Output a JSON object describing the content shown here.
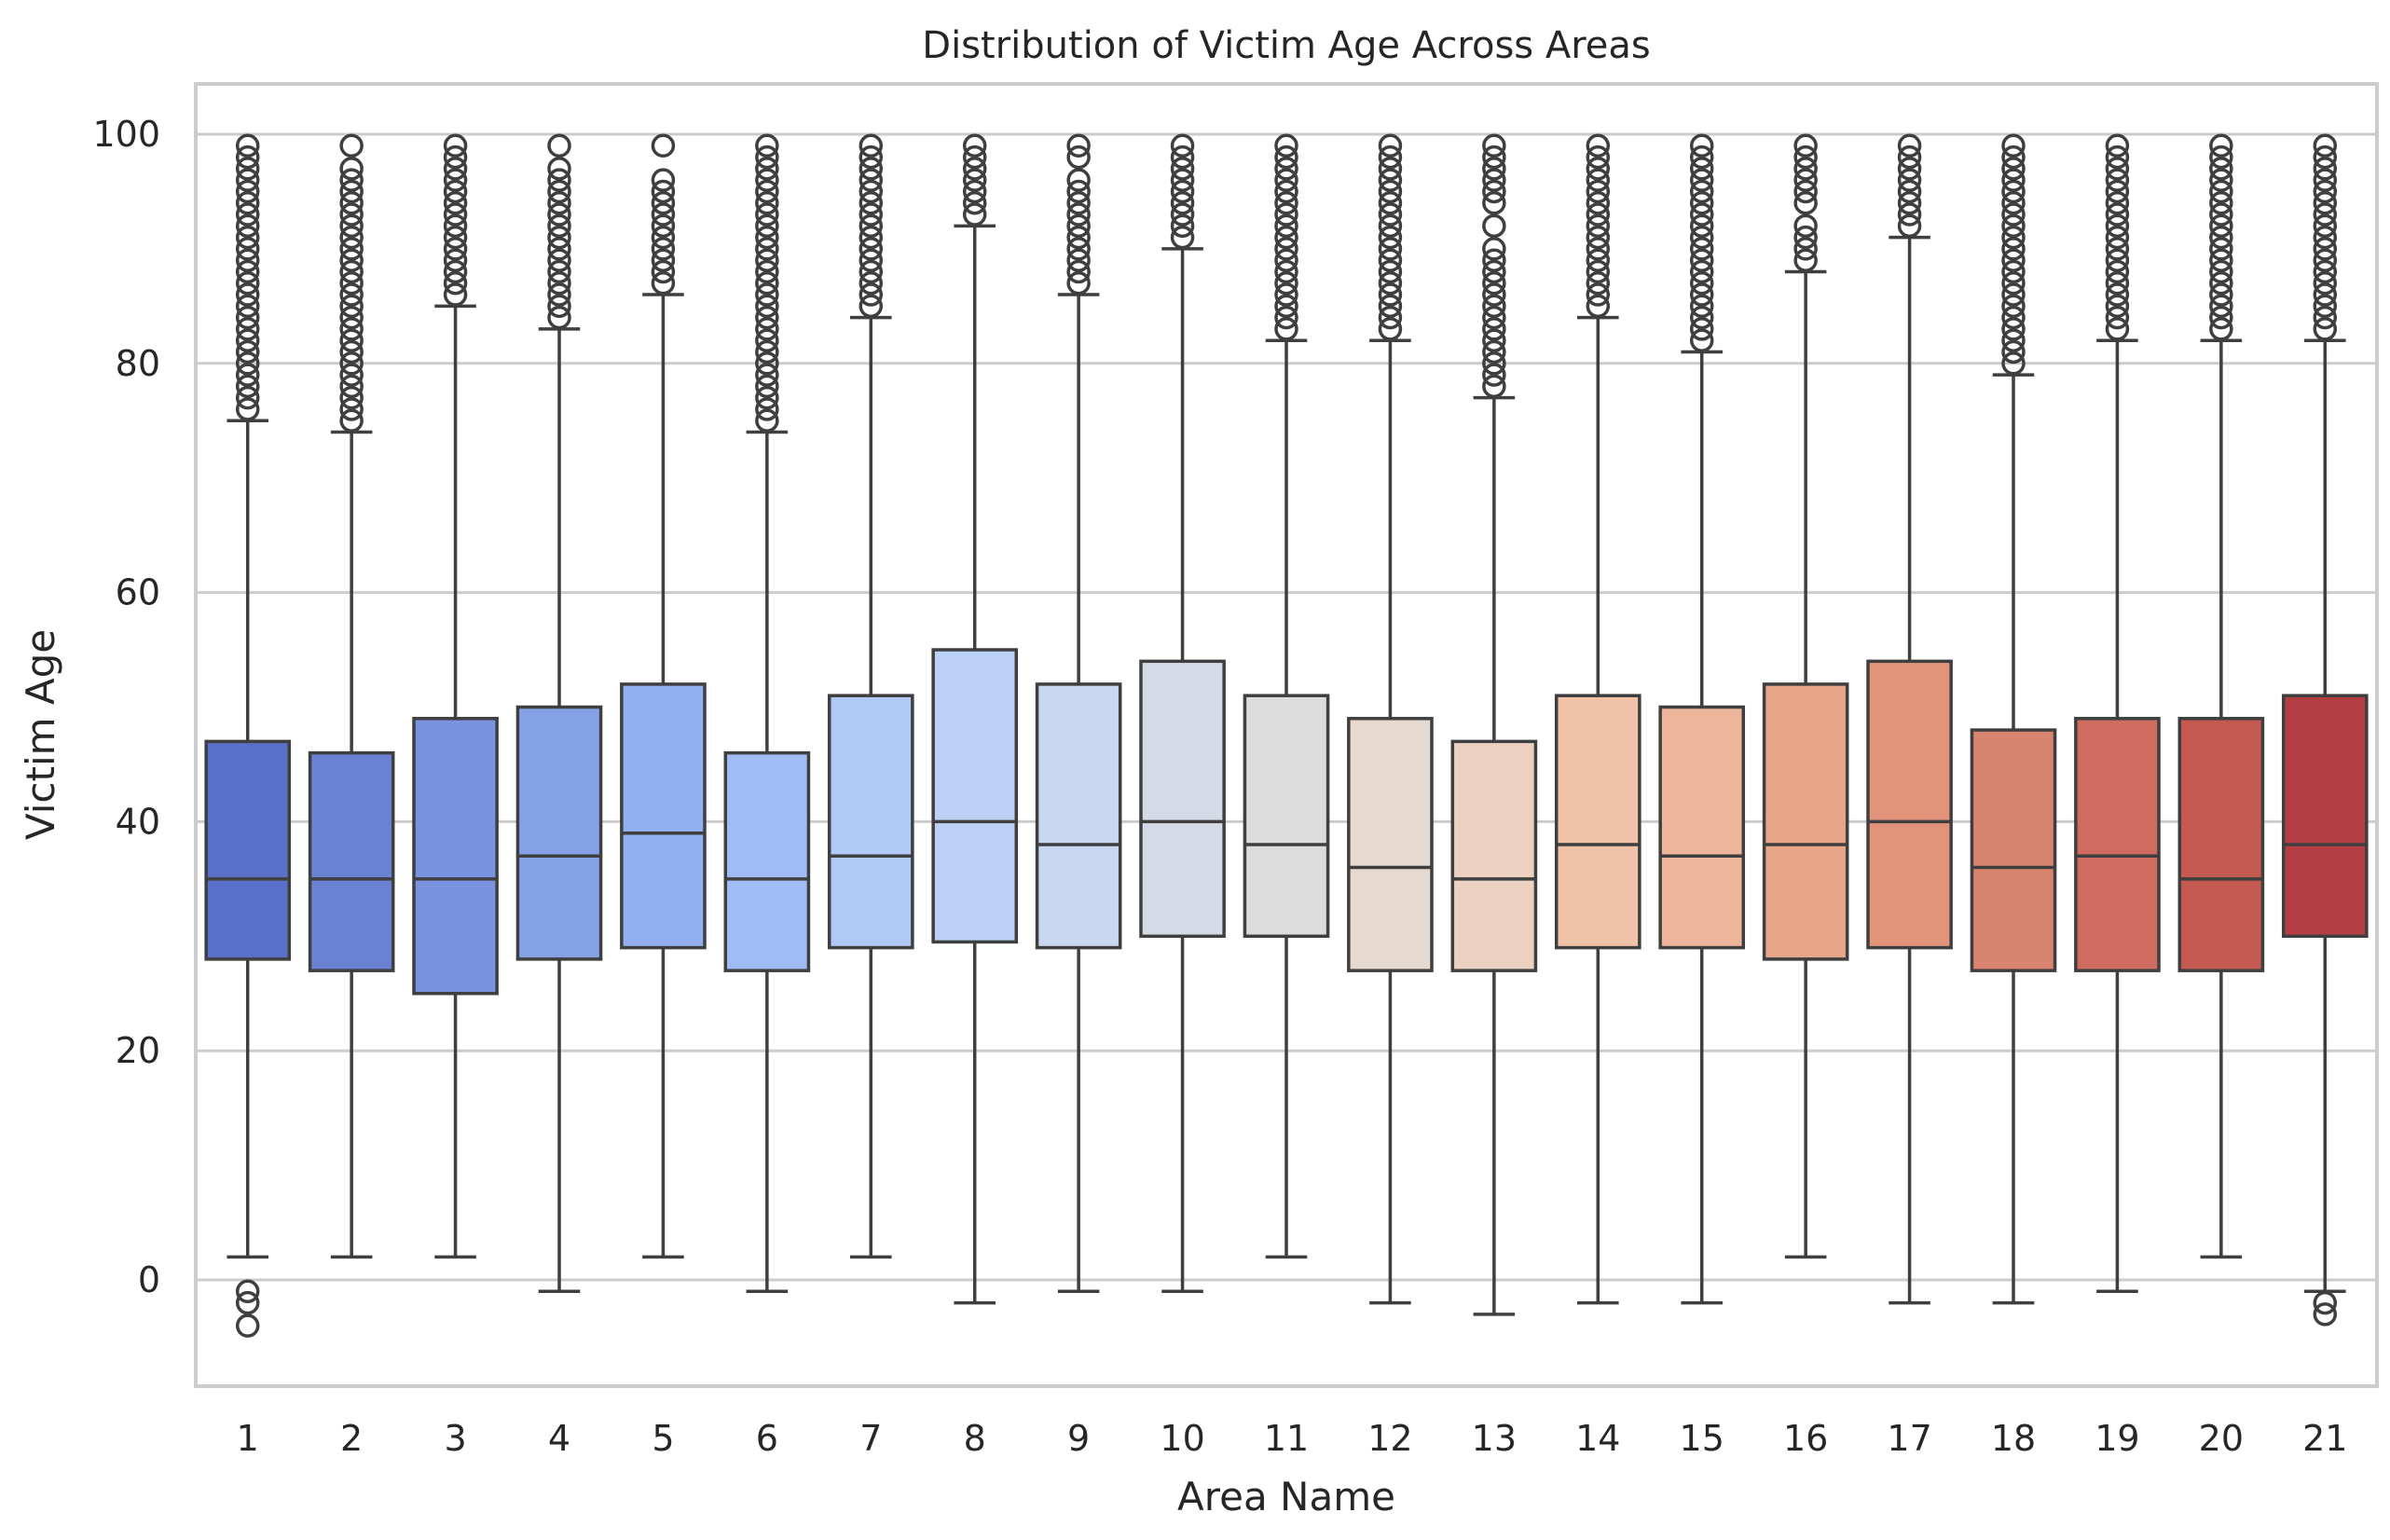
{
  "chart_data": {
    "type": "box",
    "title": "Distribution of Victim Age Across Areas",
    "xlabel": "Area Name",
    "ylabel": "Victim Age",
    "ylim": [
      -9,
      104
    ],
    "yticks": [
      0,
      20,
      40,
      60,
      80,
      100
    ],
    "grid": "horizontal",
    "palette": "coolwarm",
    "categories": [
      "1",
      "2",
      "3",
      "4",
      "5",
      "6",
      "7",
      "8",
      "9",
      "10",
      "11",
      "12",
      "13",
      "14",
      "15",
      "16",
      "17",
      "18",
      "19",
      "20",
      "21"
    ],
    "boxes": [
      {
        "category": "1",
        "whisker_low": 2,
        "q1": 28,
        "median": 35,
        "q3": 47,
        "whisker_high": 75,
        "fill": "#5a6fc8",
        "outliers_high": [
          76,
          77,
          78,
          79,
          80,
          81,
          82,
          83,
          84,
          85,
          86,
          87,
          88,
          89,
          90,
          91,
          92,
          93,
          94,
          95,
          96,
          97,
          98,
          99
        ],
        "outliers_low": [
          -1,
          -2,
          -4
        ]
      },
      {
        "category": "2",
        "whisker_low": 2,
        "q1": 27,
        "median": 35,
        "q3": 46,
        "whisker_high": 74,
        "fill": "#6a82d4",
        "outliers_high": [
          75,
          76,
          77,
          78,
          79,
          80,
          81,
          82,
          83,
          84,
          85,
          86,
          87,
          88,
          89,
          90,
          91,
          92,
          93,
          94,
          95,
          96,
          97,
          99
        ],
        "outliers_low": []
      },
      {
        "category": "3",
        "whisker_low": 2,
        "q1": 25,
        "median": 35,
        "q3": 49,
        "whisker_high": 85,
        "fill": "#7a93e0",
        "outliers_high": [
          86,
          87,
          88,
          89,
          90,
          91,
          92,
          93,
          94,
          95,
          96,
          97,
          98,
          99
        ],
        "outliers_low": []
      },
      {
        "category": "4",
        "whisker_low": -1,
        "q1": 28,
        "median": 37,
        "q3": 50,
        "whisker_high": 83,
        "fill": "#86a2e6",
        "outliers_high": [
          84,
          85,
          86,
          87,
          88,
          89,
          90,
          91,
          92,
          93,
          94,
          95,
          96,
          97,
          99
        ],
        "outliers_low": []
      },
      {
        "category": "5",
        "whisker_low": 2,
        "q1": 29,
        "median": 39,
        "q3": 52,
        "whisker_high": 86,
        "fill": "#92afef",
        "outliers_high": [
          87,
          88,
          89,
          90,
          91,
          92,
          93,
          94,
          95,
          96,
          99
        ],
        "outliers_low": []
      },
      {
        "category": "6",
        "whisker_low": -1,
        "q1": 27,
        "median": 35,
        "q3": 46,
        "whisker_high": 74,
        "fill": "#a1bcf4",
        "outliers_high": [
          75,
          76,
          77,
          78,
          79,
          80,
          81,
          82,
          83,
          84,
          85,
          86,
          87,
          88,
          89,
          90,
          91,
          92,
          93,
          94,
          95,
          96,
          97,
          98,
          99
        ],
        "outliers_low": []
      },
      {
        "category": "7",
        "whisker_low": 2,
        "q1": 29,
        "median": 37,
        "q3": 51,
        "whisker_high": 84,
        "fill": "#b0c9f7",
        "outliers_high": [
          85,
          86,
          87,
          88,
          89,
          90,
          91,
          92,
          93,
          94,
          95,
          96,
          97,
          98,
          99
        ],
        "outliers_low": []
      },
      {
        "category": "8",
        "whisker_low": -2,
        "q1": 29.5,
        "median": 40,
        "q3": 55,
        "whisker_high": 92,
        "fill": "#bdd0f5",
        "outliers_high": [
          93,
          94,
          95,
          96,
          97,
          98,
          99
        ],
        "outliers_low": []
      },
      {
        "category": "9",
        "whisker_low": -1,
        "q1": 29,
        "median": 38,
        "q3": 52,
        "whisker_high": 86,
        "fill": "#c9d7f0",
        "outliers_high": [
          87,
          88,
          89,
          90,
          91,
          92,
          93,
          94,
          95,
          96,
          98,
          99
        ],
        "outliers_low": []
      },
      {
        "category": "10",
        "whisker_low": -1,
        "q1": 30,
        "median": 40,
        "q3": 54,
        "whisker_high": 90,
        "fill": "#d5dbe6",
        "outliers_high": [
          91,
          92,
          93,
          94,
          95,
          96,
          97,
          98,
          99
        ],
        "outliers_low": []
      },
      {
        "category": "11",
        "whisker_low": 2,
        "q1": 30,
        "median": 38,
        "q3": 51,
        "whisker_high": 82,
        "fill": "#dcdcdc",
        "outliers_high": [
          83,
          84,
          85,
          86,
          87,
          88,
          89,
          90,
          91,
          92,
          93,
          94,
          95,
          96,
          97,
          98,
          99
        ],
        "outliers_low": []
      },
      {
        "category": "12",
        "whisker_low": -2,
        "q1": 27,
        "median": 36,
        "q3": 49,
        "whisker_high": 82,
        "fill": "#e6d9d0",
        "outliers_high": [
          83,
          84,
          85,
          86,
          87,
          88,
          89,
          90,
          91,
          92,
          93,
          94,
          95,
          96,
          97,
          98,
          99
        ],
        "outliers_low": []
      },
      {
        "category": "13",
        "whisker_low": -3,
        "q1": 27,
        "median": 35,
        "q3": 47,
        "whisker_high": 77,
        "fill": "#ecd0c0",
        "outliers_high": [
          78,
          79,
          80,
          81,
          82,
          83,
          84,
          85,
          86,
          87,
          88,
          89,
          90,
          92,
          94,
          95,
          96,
          97,
          98,
          99
        ],
        "outliers_low": []
      },
      {
        "category": "14",
        "whisker_low": -2,
        "q1": 29,
        "median": 38,
        "q3": 51,
        "whisker_high": 84,
        "fill": "#f0c3a9",
        "outliers_high": [
          85,
          86,
          87,
          88,
          89,
          90,
          91,
          92,
          93,
          94,
          95,
          96,
          97,
          98,
          99
        ],
        "outliers_low": []
      },
      {
        "category": "15",
        "whisker_low": -2,
        "q1": 29,
        "median": 37,
        "q3": 50,
        "whisker_high": 81,
        "fill": "#edb69a",
        "outliers_high": [
          82,
          83,
          84,
          85,
          86,
          87,
          88,
          89,
          90,
          91,
          92,
          93,
          94,
          95,
          96,
          97,
          98,
          99
        ],
        "outliers_low": []
      },
      {
        "category": "16",
        "whisker_low": 2,
        "q1": 28,
        "median": 38,
        "q3": 52,
        "whisker_high": 88,
        "fill": "#e8a689",
        "outliers_high": [
          89,
          90,
          91,
          92,
          94,
          95,
          96,
          97,
          98,
          99
        ],
        "outliers_low": []
      },
      {
        "category": "17",
        "whisker_low": -2,
        "q1": 29,
        "median": 40,
        "q3": 54,
        "whisker_high": 91,
        "fill": "#e2947a",
        "outliers_high": [
          92,
          93,
          94,
          95,
          96,
          97,
          98,
          99
        ],
        "outliers_low": []
      },
      {
        "category": "18",
        "whisker_low": -2,
        "q1": 27,
        "median": 36,
        "q3": 48,
        "whisker_high": 79,
        "fill": "#d8846e",
        "outliers_high": [
          80,
          81,
          82,
          83,
          84,
          85,
          86,
          87,
          88,
          89,
          90,
          91,
          92,
          93,
          94,
          95,
          96,
          97,
          98,
          99
        ],
        "outliers_low": []
      },
      {
        "category": "19",
        "whisker_low": -1,
        "q1": 27,
        "median": 37,
        "q3": 49,
        "whisker_high": 82,
        "fill": "#cd6c5f",
        "outliers_high": [
          83,
          84,
          85,
          86,
          87,
          88,
          89,
          90,
          91,
          92,
          93,
          94,
          95,
          96,
          97,
          98,
          99
        ],
        "outliers_low": []
      },
      {
        "category": "20",
        "whisker_low": 2,
        "q1": 27,
        "median": 35,
        "q3": 49,
        "whisker_high": 82,
        "fill": "#c45a52",
        "outliers_high": [
          83,
          84,
          85,
          86,
          87,
          88,
          89,
          90,
          91,
          92,
          93,
          94,
          95,
          96,
          97,
          98,
          99
        ],
        "outliers_low": []
      },
      {
        "category": "21",
        "whisker_low": -1,
        "q1": 30,
        "median": 38,
        "q3": 51,
        "whisker_high": 82,
        "fill": "#b43e43",
        "outliers_high": [
          83,
          84,
          85,
          86,
          87,
          88,
          89,
          90,
          91,
          92,
          93,
          94,
          95,
          96,
          97,
          98,
          99
        ],
        "outliers_low": [
          -2,
          -3
        ]
      }
    ]
  }
}
